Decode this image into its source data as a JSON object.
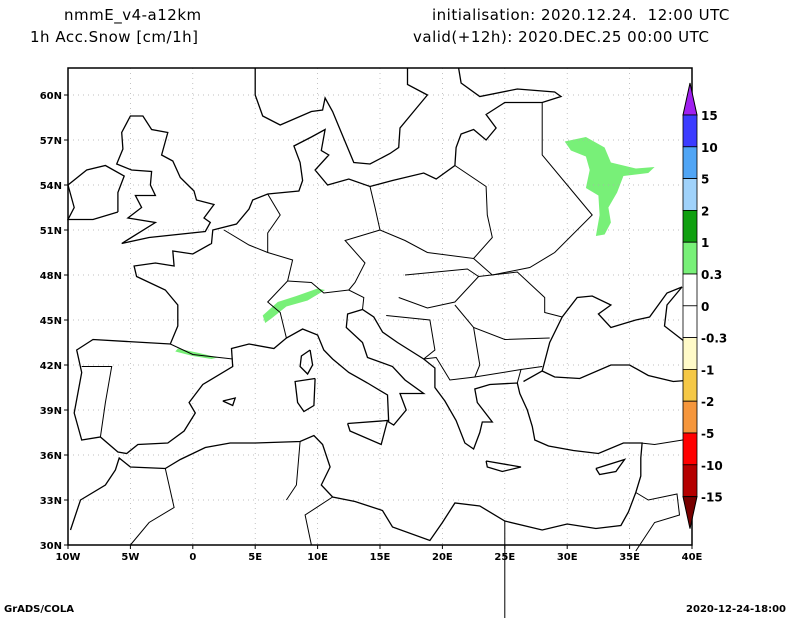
{
  "header": {
    "model": "nmmE_v4-a12km",
    "variable": "1h Acc.Snow [cm/1h]",
    "initialisation": "initialisation: 2020.12.24.  12:00 UTC",
    "valid": "valid(+12h): 2020.DEC.25 00:00 UTC"
  },
  "footer": {
    "left": "GrADS/COLA",
    "right": "2020-12-24-18:00"
  },
  "map": {
    "lon_range": [
      -10,
      40
    ],
    "lat_range": [
      30,
      61.8
    ],
    "lat_ticks": [
      {
        "v": 30,
        "label": "30N"
      },
      {
        "v": 33,
        "label": "33N"
      },
      {
        "v": 36,
        "label": "36N"
      },
      {
        "v": 39,
        "label": "39N"
      },
      {
        "v": 42,
        "label": "42N"
      },
      {
        "v": 45,
        "label": "45N"
      },
      {
        "v": 48,
        "label": "48N"
      },
      {
        "v": 51,
        "label": "51N"
      },
      {
        "v": 54,
        "label": "54N"
      },
      {
        "v": 57,
        "label": "57N"
      },
      {
        "v": 60,
        "label": "60N"
      }
    ],
    "lon_ticks": [
      {
        "v": -10,
        "label": "10W"
      },
      {
        "v": -5,
        "label": "5W"
      },
      {
        "v": 0,
        "label": "0"
      },
      {
        "v": 5,
        "label": "5E"
      },
      {
        "v": 10,
        "label": "10E"
      },
      {
        "v": 15,
        "label": "15E"
      },
      {
        "v": 20,
        "label": "20E"
      },
      {
        "v": 25,
        "label": "25E"
      },
      {
        "v": 30,
        "label": "30E"
      },
      {
        "v": 35,
        "label": "35E"
      },
      {
        "v": 40,
        "label": "40E"
      }
    ],
    "snow_color": "#78f078"
  },
  "colorbar": {
    "top_color": "#a020f0",
    "bottom_color": "#780000",
    "segments": [
      {
        "color": "#3c3cff",
        "label": "15"
      },
      {
        "color": "#50a5f5",
        "label": "10"
      },
      {
        "color": "#a0d2fa",
        "label": "5"
      },
      {
        "color": "#10a010",
        "label": "2"
      },
      {
        "color": "#78f078",
        "label": "1"
      },
      {
        "color": "#ffffff",
        "label": "0.3"
      },
      {
        "color": "#ffffff",
        "label": "0"
      },
      {
        "color": "#fffac8",
        "label": "-0.3"
      },
      {
        "color": "#f5c846",
        "label": "-1"
      },
      {
        "color": "#f5963c",
        "label": "-2"
      },
      {
        "color": "#ff0000",
        "label": "-5"
      },
      {
        "color": "#b40000",
        "label": "-10"
      }
    ],
    "last_label": "-15"
  }
}
